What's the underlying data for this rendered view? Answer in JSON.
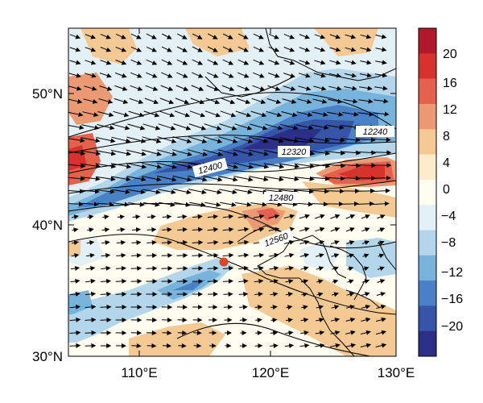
{
  "map": {
    "lat_ticks": [
      "30°N",
      "40°N",
      "50°N"
    ],
    "lon_ticks": [
      "110°E",
      "120°E",
      "130°E"
    ],
    "contour_labels": [
      "12240",
      "12320",
      "12400",
      "12480",
      "12560"
    ],
    "colorbar": {
      "labels": [
        "20",
        "16",
        "12",
        "8",
        "4",
        "0",
        "−4",
        "−8",
        "−12",
        "−16",
        "−20"
      ],
      "colors": [
        "#b2182b",
        "#d6322e",
        "#e4624d",
        "#ec9a73",
        "#f5c993",
        "#fbeccc",
        "#fffdf0",
        "#e3f1f7",
        "#b3d6ea",
        "#78b3dc",
        "#4a80c4",
        "#3654a8",
        "#2b2f86"
      ]
    },
    "marker_color": "#e0452b"
  }
}
